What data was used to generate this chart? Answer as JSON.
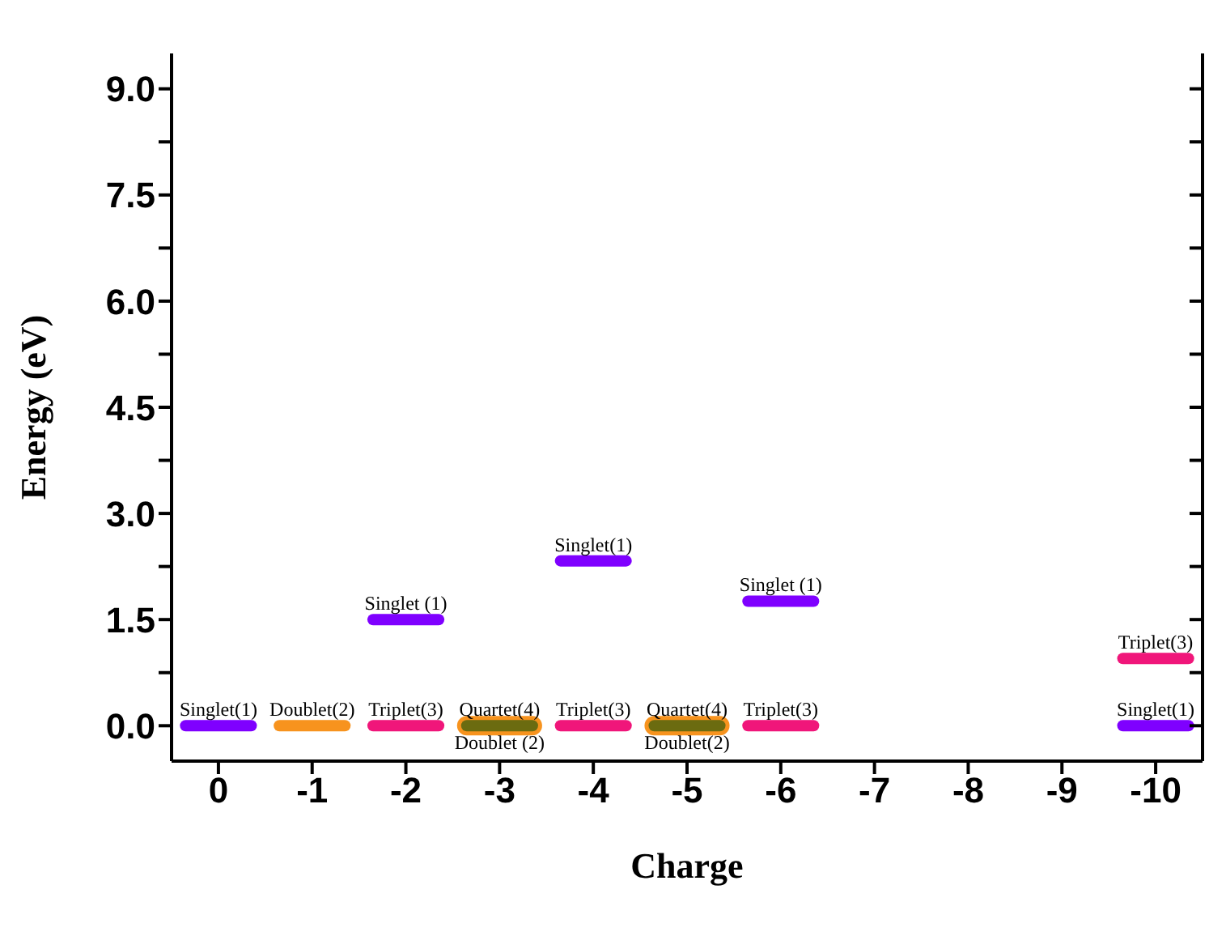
{
  "chart_data": {
    "type": "line",
    "xlabel": "Charge",
    "ylabel": "Energy (eV)",
    "xlim": [
      0.5,
      -10.5
    ],
    "xticks": [
      0,
      -1,
      -2,
      -3,
      -4,
      -5,
      -6,
      -7,
      -8,
      -9,
      -10
    ],
    "ylim": [
      -0.5,
      9.5
    ],
    "yticks": [
      {
        "value": 0,
        "label": "0.0"
      },
      {
        "value": 0.75,
        "label": null
      },
      {
        "value": 1.5,
        "label": "1.5"
      },
      {
        "value": 2.25,
        "label": null
      },
      {
        "value": 3,
        "label": "3.0"
      },
      {
        "value": 3.75,
        "label": null
      },
      {
        "value": 4.5,
        "label": "4.5"
      },
      {
        "value": 5.25,
        "label": null
      },
      {
        "value": 6,
        "label": "6.0"
      },
      {
        "value": 6.75,
        "label": null
      },
      {
        "value": 7.5,
        "label": "7.5"
      },
      {
        "value": 8.25,
        "label": null
      },
      {
        "value": 9,
        "label": "9.0"
      }
    ],
    "series": [
      {
        "color": "#7f00ff",
        "x": [
          0.35,
          -0.35
        ],
        "values": [
          0,
          0
        ]
      },
      {
        "color": "#f7931e",
        "x": [
          -0.65,
          -1.35
        ],
        "values": [
          0,
          0
        ]
      },
      {
        "color": "#f0167a",
        "x": [
          -1.65,
          -2.35
        ],
        "values": [
          0,
          0
        ]
      },
      {
        "color": "#7f00ff",
        "x": [
          -1.65,
          -2.35
        ],
        "values": [
          1.5,
          1.5
        ]
      },
      {
        "color": "#f7931e",
        "x": [
          -2.65,
          -3.35
        ],
        "values": [
          0,
          0
        ]
      },
      {
        "color": "#6b6b10",
        "x": [
          -2.65,
          -3.35
        ],
        "values": [
          0,
          0
        ]
      },
      {
        "color": "#f0167a",
        "x": [
          -3.65,
          -4.35
        ],
        "values": [
          0,
          0
        ]
      },
      {
        "color": "#7f00ff",
        "x": [
          -3.65,
          -4.35
        ],
        "values": [
          2.33,
          2.33
        ]
      },
      {
        "color": "#f7931e",
        "x": [
          -4.65,
          -5.35
        ],
        "values": [
          0,
          0
        ]
      },
      {
        "color": "#6b6b10",
        "x": [
          -4.65,
          -5.35
        ],
        "values": [
          0,
          0
        ]
      },
      {
        "color": "#f0167a",
        "x": [
          -5.65,
          -6.35
        ],
        "values": [
          0,
          0
        ]
      },
      {
        "color": "#7f00ff",
        "x": [
          -5.65,
          -6.35
        ],
        "values": [
          1.76,
          1.76
        ]
      },
      {
        "color": "#7f00ff",
        "x": [
          -9.65,
          -10.35
        ],
        "values": [
          0,
          0
        ]
      },
      {
        "color": "#f0167a",
        "x": [
          -9.65,
          -10.35
        ],
        "values": [
          0.95,
          0.95
        ]
      }
    ],
    "annotations": [
      {
        "text": "Singlet(1)",
        "x": 0,
        "y": 0
      },
      {
        "text": "Doublet(2)",
        "x": -1,
        "y": 0
      },
      {
        "text": "Triplet(3)",
        "x": -2,
        "y": 0
      },
      {
        "text": "Singlet (1)",
        "x": -2,
        "y": 1.5
      },
      {
        "text": "Quartet(4)",
        "x": -3,
        "y": 0
      },
      {
        "text": "Doublet (2)",
        "x": -3,
        "y": 0
      },
      {
        "text": "Triplet(3)",
        "x": -4,
        "y": 0
      },
      {
        "text": "Singlet(1)",
        "x": -4,
        "y": 2.33
      },
      {
        "text": "Quartet(4)",
        "x": -5,
        "y": 0
      },
      {
        "text": "Doublet(2)",
        "x": -5,
        "y": 0
      },
      {
        "text": "Triplet(3)",
        "x": -6,
        "y": 0
      },
      {
        "text": "Singlet (1)",
        "x": -6,
        "y": 1.76
      },
      {
        "text": "Triplet(3)",
        "x": -10,
        "y": 0.95
      },
      {
        "text": "Singlet(1)",
        "x": -10,
        "y": 0
      }
    ],
    "grid": false,
    "legend": false,
    "marker": "none",
    "line_style": "solid"
  }
}
